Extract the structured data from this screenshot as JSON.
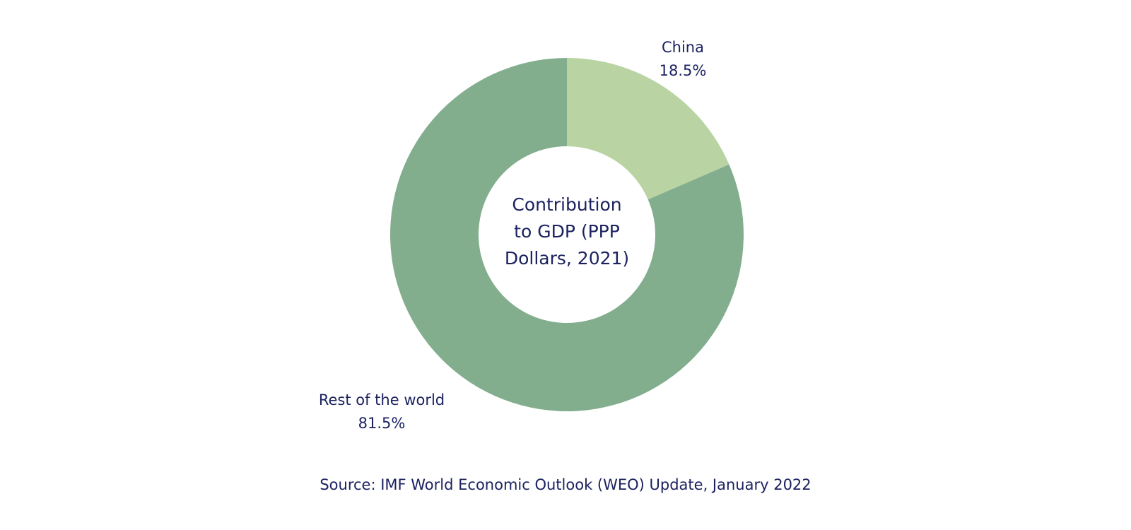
{
  "chart_data": {
    "type": "pie",
    "donut": true,
    "center_label": [
      "Contribution",
      "to GDP (PPP",
      "Dollars, 2021)"
    ],
    "slices": [
      {
        "label": "China",
        "value": 18.5,
        "value_label": "18.5%",
        "color": "#b9d3a3"
      },
      {
        "label": "Rest of the world",
        "value": 81.5,
        "value_label": "81.5%",
        "color": "#82ae8e"
      }
    ],
    "legend": "none"
  },
  "source": "Source: IMF World Economic Outlook (WEO) Update, January 2022"
}
